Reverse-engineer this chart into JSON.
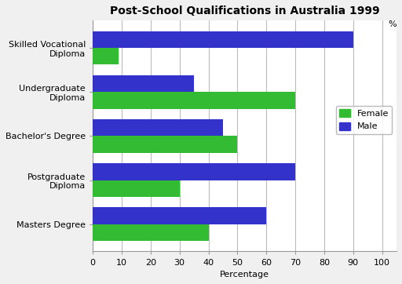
{
  "title": "Post-School Qualifications in Australia 1999",
  "categories": [
    "Skilled Vocational\nDiploma",
    "Undergraduate\nDiploma",
    "Bachelor's Degree",
    "Postgraduate\nDiploma",
    "Masters Degree"
  ],
  "female_values": [
    9,
    70,
    50,
    30,
    40
  ],
  "male_values": [
    90,
    35,
    45,
    70,
    60
  ],
  "female_color": "#33bb33",
  "male_color": "#3333cc",
  "xlabel": "Percentage",
  "xlim": [
    0,
    105
  ],
  "xticks": [
    0,
    10,
    20,
    30,
    40,
    50,
    60,
    70,
    80,
    90,
    100
  ],
  "xtick_labels": [
    "0",
    "10",
    "20",
    "30",
    "40",
    "50",
    "60",
    "70",
    "80",
    "90",
    "100"
  ],
  "legend_labels": [
    "Female",
    "Male"
  ],
  "bar_height": 0.38,
  "title_fontsize": 10,
  "label_fontsize": 8,
  "tick_fontsize": 8,
  "background_color": "#f0f0f0",
  "plot_bg_color": "#ffffff",
  "grid_color": "#bbbbbb"
}
